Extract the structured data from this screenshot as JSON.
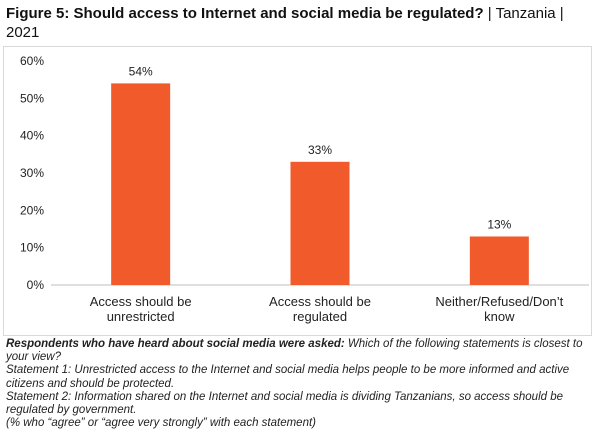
{
  "figure": {
    "title_bold": "Figure 5: Should access to Internet and social media be regulated?",
    "title_rest": " | Tanzania | 2021"
  },
  "chart_data": {
    "type": "bar",
    "categories": [
      [
        "Access should be",
        "unrestricted"
      ],
      [
        "Access should be",
        "regulated"
      ],
      [
        "Neither/Refused/Don’t",
        "know"
      ]
    ],
    "values": [
      54,
      33,
      13
    ],
    "value_labels": [
      "54%",
      "33%",
      "13%"
    ],
    "yticks": [
      0,
      10,
      20,
      30,
      40,
      50,
      60
    ],
    "ytick_labels": [
      "0%",
      "10%",
      "20%",
      "30%",
      "40%",
      "50%",
      "60%"
    ],
    "ylim": [
      0,
      60
    ],
    "grid": false,
    "legend": "none",
    "bar_color": "#f15a2b",
    "axis_color": "#bfbfbf",
    "label_color": "#222222"
  },
  "notes": {
    "question_bold": "Respondents who have heard about social media were asked:",
    "question_rest": " Which of the following statements is closest to your view?",
    "statement1": "Statement 1: Unrestricted access to the Internet and social media helps people to be more informed and active citizens and should be protected.",
    "statement2": "Statement 2: Information shared on the Internet and social media is dividing Tanzanians, so access should be regulated by government.",
    "footnote": "(% who “agree” or “agree very strongly” with each statement)"
  }
}
